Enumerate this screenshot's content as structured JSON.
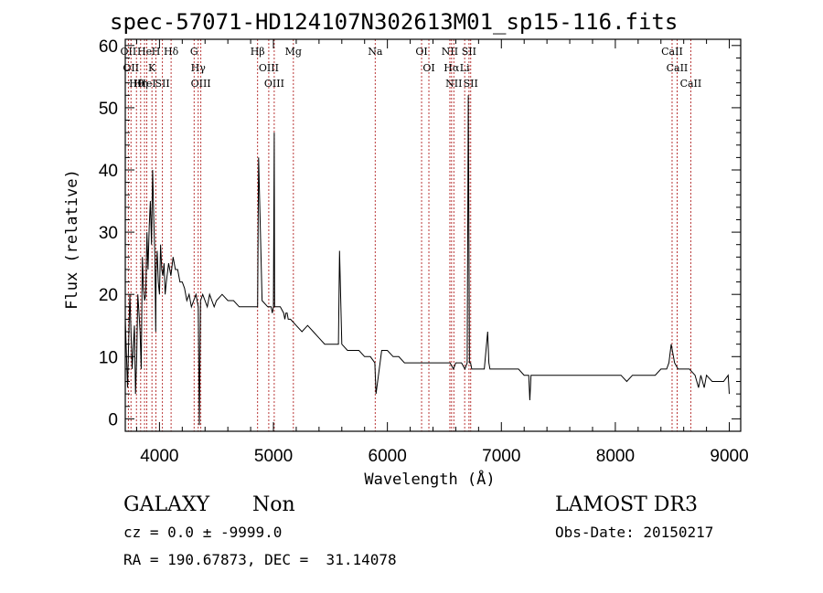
{
  "header": {
    "title": "spec-57071-HD124107N302613M01_sp15-116.fits"
  },
  "info": {
    "class": "GALAXY",
    "subclass": "Non",
    "survey": "LAMOST DR3",
    "cz": "cz = 0.0 ± -9999.0",
    "obs_date": "Obs-Date: 20150217",
    "radec": "RA = 190.67873, DEC =  31.14078"
  },
  "colors": {
    "line_marker": "#b22222",
    "spectrum": "#000000",
    "axes": "#000000"
  },
  "chart_data": {
    "type": "line",
    "title": "spec-57071-HD124107N302613M01_sp15-116.fits",
    "xlabel": "Wavelength (Å)",
    "ylabel": "Flux (relative)",
    "xlim": [
      3700,
      9100
    ],
    "ylim": [
      -2,
      61
    ],
    "xticks": [
      4000,
      5000,
      6000,
      7000,
      8000,
      9000
    ],
    "yticks": [
      0,
      10,
      20,
      30,
      40,
      50,
      60
    ],
    "grid": false,
    "series": [
      {
        "x": [
          3700,
          3720,
          3740,
          3760,
          3780,
          3790,
          3800,
          3810,
          3820,
          3830,
          3840,
          3850,
          3860,
          3870,
          3880,
          3890,
          3900,
          3910,
          3920,
          3930,
          3940,
          3950,
          3960,
          3967,
          3970,
          3980,
          3990,
          4000,
          4010,
          4020,
          4030,
          4040,
          4050,
          4060,
          4080,
          4100,
          4120,
          4140,
          4160,
          4180,
          4200,
          4220,
          4240,
          4260,
          4280,
          4300,
          4320,
          4340,
          4350,
          4360,
          4380,
          4400,
          4420,
          4440,
          4460,
          4480,
          4500,
          4550,
          4600,
          4650,
          4700,
          4750,
          4800,
          4850,
          4861,
          4870,
          4900,
          4950,
          4980,
          4990,
          5000,
          5007,
          5010,
          5030,
          5060,
          5090,
          5100,
          5110,
          5120,
          5130,
          5150,
          5200,
          5250,
          5300,
          5350,
          5400,
          5450,
          5500,
          5550,
          5570,
          5580,
          5600,
          5650,
          5700,
          5750,
          5800,
          5850,
          5890,
          5900,
          5950,
          6000,
          6050,
          6100,
          6150,
          6200,
          6250,
          6300,
          6350,
          6400,
          6450,
          6500,
          6550,
          6580,
          6600,
          6630,
          6650,
          6680,
          6700,
          6710,
          6720,
          6730,
          6740,
          6760,
          6800,
          6850,
          6880,
          6890,
          6900,
          6920,
          6950,
          7000,
          7050,
          7100,
          7150,
          7200,
          7240,
          7250,
          7260,
          7300,
          7350,
          7400,
          7450,
          7500,
          7550,
          7600,
          7650,
          7700,
          7750,
          7800,
          7850,
          7900,
          7950,
          8000,
          8050,
          8100,
          8150,
          8200,
          8250,
          8300,
          8350,
          8400,
          8450,
          8470,
          8490,
          8520,
          8550,
          8600,
          8650,
          8700,
          8730,
          8750,
          8780,
          8800,
          8850,
          8900,
          8950,
          8990,
          9000
        ],
        "y": [
          16,
          5,
          20,
          8,
          15,
          4,
          10,
          20,
          17,
          14,
          8,
          26,
          21,
          19,
          20,
          30,
          24,
          31,
          35,
          28,
          40,
          32,
          26,
          14,
          23,
          27,
          22,
          20,
          28,
          24,
          23,
          25,
          20,
          22,
          25,
          23,
          26,
          24,
          24,
          22,
          22,
          21,
          19,
          20,
          18,
          19,
          20,
          18,
          -1,
          19,
          20,
          19,
          18,
          20,
          19,
          18,
          19,
          20,
          19,
          19,
          18,
          18,
          18,
          18,
          18,
          42,
          19,
          18,
          18,
          17,
          18,
          46,
          18,
          18,
          18,
          17,
          16,
          17,
          17,
          16,
          16,
          15,
          14,
          15,
          14,
          13,
          12,
          12,
          12,
          12,
          27,
          12,
          11,
          11,
          11,
          10,
          10,
          9,
          4,
          11,
          11,
          10,
          10,
          9,
          9,
          9,
          9,
          9,
          9,
          9,
          9,
          9,
          8,
          9,
          9,
          9,
          8,
          9,
          52,
          9,
          9,
          8,
          8,
          8,
          8,
          14,
          9,
          8,
          8,
          8,
          8,
          8,
          8,
          8,
          7,
          7,
          3,
          7,
          7,
          7,
          7,
          7,
          7,
          7,
          7,
          7,
          7,
          7,
          7,
          7,
          7,
          7,
          7,
          7,
          6,
          7,
          7,
          7,
          7,
          7,
          8,
          8,
          9,
          12,
          9,
          8,
          8,
          8,
          7,
          5,
          7,
          5,
          7,
          6,
          6,
          6,
          7,
          4
        ]
      }
    ],
    "line_markers": [
      {
        "w": 3727,
        "label": "OII"
      },
      {
        "w": 3750,
        "label": "OII"
      },
      {
        "w": 3798,
        "label": "Hθ"
      },
      {
        "w": 3835,
        "label": "Hη"
      },
      {
        "w": 3869,
        "label": "He"
      },
      {
        "w": 3889,
        "label": "HeI"
      },
      {
        "w": 3934,
        "label": "K"
      },
      {
        "w": 3969,
        "label": "H"
      },
      {
        "w": 4026,
        "label": "SII"
      },
      {
        "w": 4102,
        "label": "Hδ"
      },
      {
        "w": 4304,
        "label": "G"
      },
      {
        "w": 4340,
        "label": "Hγ"
      },
      {
        "w": 4363,
        "label": "OIII"
      },
      {
        "w": 4861,
        "label": "Hβ"
      },
      {
        "w": 4959,
        "label": "OIII"
      },
      {
        "w": 5007,
        "label": "OIII"
      },
      {
        "w": 5175,
        "label": "Mg"
      },
      {
        "w": 5893,
        "label": "Na"
      },
      {
        "w": 6300,
        "label": "OI"
      },
      {
        "w": 6364,
        "label": "OI"
      },
      {
        "w": 6548,
        "label": "NII"
      },
      {
        "w": 6563,
        "label": "Hα"
      },
      {
        "w": 6583,
        "label": "NII"
      },
      {
        "w": 6678,
        "label": "Li"
      },
      {
        "w": 6716,
        "label": "SII"
      },
      {
        "w": 6731,
        "label": "SII"
      },
      {
        "w": 8498,
        "label": "CaII"
      },
      {
        "w": 8542,
        "label": "CaII"
      },
      {
        "w": 8662,
        "label": "CaII"
      }
    ]
  }
}
